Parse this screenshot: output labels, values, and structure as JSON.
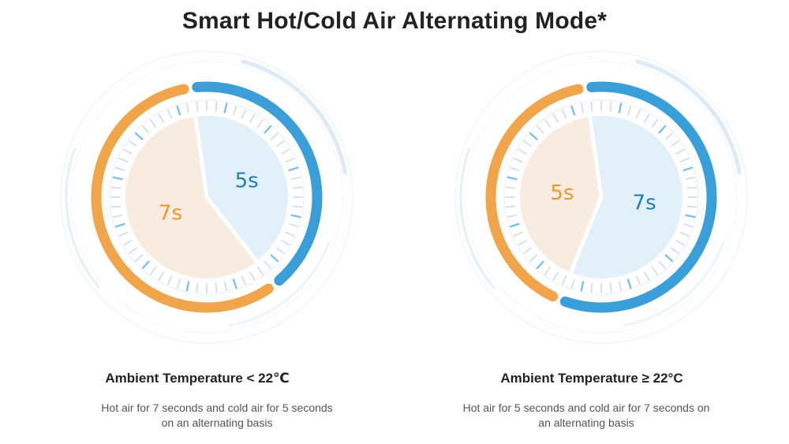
{
  "title": "Smart Hot/Cold Air Alternating Mode*",
  "colors": {
    "hot": "#f0a54a",
    "hot_fill": "#f8ece0",
    "cold": "#3a9fd8",
    "cold_fill": "#e2f0fa",
    "hot_text": "#f0962f",
    "cold_text": "#1f7fb8"
  },
  "modes": [
    {
      "condition": "Ambient Temperature < 22℃",
      "hot_label": "7s",
      "cold_label": "5s",
      "hot_seconds": 7,
      "cold_seconds": 5,
      "description": "Hot air for 7 seconds and cold air for 5 seconds on an alternating basis"
    },
    {
      "condition": "Ambient Temperature ≥ 22°C",
      "hot_label": "5s",
      "cold_label": "7s",
      "hot_seconds": 5,
      "cold_seconds": 7,
      "description": "Hot air for 5 seconds and cold air for 7 seconds on an alternating basis"
    }
  ]
}
